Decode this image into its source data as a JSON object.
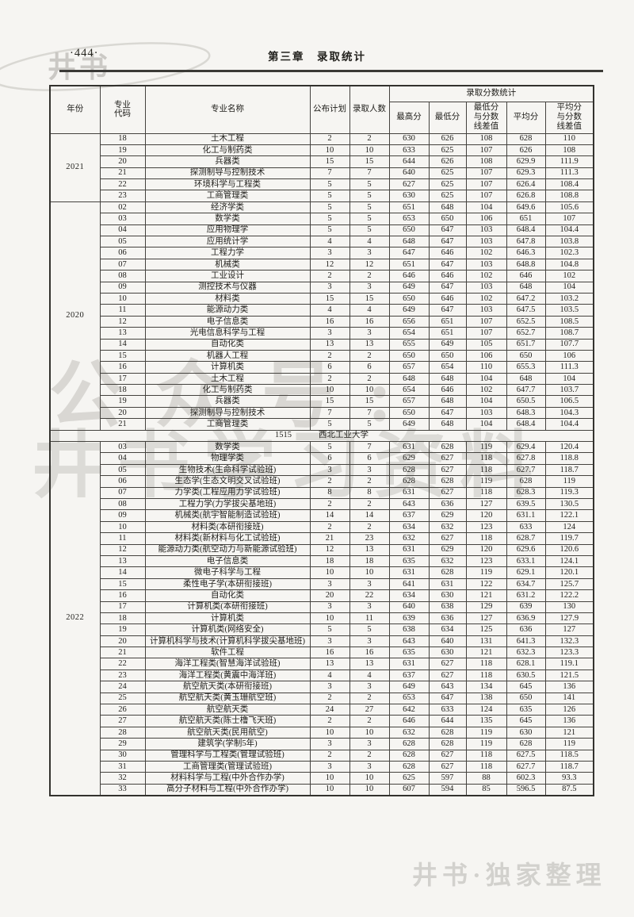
{
  "page": {
    "number": "·444·",
    "chapter_title": "第三章　录取统计"
  },
  "watermarks": {
    "top_left": "井书",
    "center_line1": "公众号:",
    "center_line2": "井书学习资料",
    "bottom_right": "井书·独家整理"
  },
  "table": {
    "headers": {
      "year": "年份",
      "code": "专业\n代码",
      "major": "专业名称",
      "plan": "公布计划",
      "admitted": "录取人数",
      "stats_group": "录取分数统计",
      "max": "最高分",
      "min": "最低分",
      "min_diff": "最低分\n与分数\n线差值",
      "avg": "平均分",
      "avg_diff": "平均分\n与分数\n线差值"
    },
    "sections": [
      {
        "type": "year",
        "year": "2021",
        "rows": [
          [
            "18",
            "土木工程",
            "2",
            "2",
            "630",
            "626",
            "108",
            "628",
            "110"
          ],
          [
            "19",
            "化工与制药类",
            "10",
            "10",
            "633",
            "625",
            "107",
            "626",
            "108"
          ],
          [
            "20",
            "兵器类",
            "15",
            "15",
            "644",
            "626",
            "108",
            "629.9",
            "111.9"
          ],
          [
            "21",
            "探测制导与控制技术",
            "7",
            "7",
            "640",
            "625",
            "107",
            "629.3",
            "111.3"
          ],
          [
            "22",
            "环境科学与工程类",
            "5",
            "5",
            "627",
            "625",
            "107",
            "626.4",
            "108.4"
          ],
          [
            "23",
            "工商管理类",
            "5",
            "5",
            "630",
            "625",
            "107",
            "626.8",
            "108.8"
          ]
        ]
      },
      {
        "type": "year",
        "year": "2020",
        "rows": [
          [
            "02",
            "经济学类",
            "5",
            "5",
            "651",
            "648",
            "104",
            "649.6",
            "105.6"
          ],
          [
            "03",
            "数学类",
            "5",
            "5",
            "653",
            "650",
            "106",
            "651",
            "107"
          ],
          [
            "04",
            "应用物理学",
            "5",
            "5",
            "650",
            "647",
            "103",
            "648.4",
            "104.4"
          ],
          [
            "05",
            "应用统计学",
            "4",
            "4",
            "648",
            "647",
            "103",
            "647.8",
            "103.8"
          ],
          [
            "06",
            "工程力学",
            "3",
            "3",
            "647",
            "646",
            "102",
            "646.3",
            "102.3"
          ],
          [
            "07",
            "机械类",
            "12",
            "12",
            "651",
            "647",
            "103",
            "648.8",
            "104.8"
          ],
          [
            "08",
            "工业设计",
            "2",
            "2",
            "646",
            "646",
            "102",
            "646",
            "102"
          ],
          [
            "09",
            "测控技术与仪器",
            "3",
            "3",
            "649",
            "647",
            "103",
            "648",
            "104"
          ],
          [
            "10",
            "材料类",
            "15",
            "15",
            "650",
            "646",
            "102",
            "647.2",
            "103.2"
          ],
          [
            "11",
            "能源动力类",
            "4",
            "4",
            "649",
            "647",
            "103",
            "647.5",
            "103.5"
          ],
          [
            "12",
            "电子信息类",
            "16",
            "16",
            "656",
            "651",
            "107",
            "652.5",
            "108.5"
          ],
          [
            "13",
            "光电信息科学与工程",
            "3",
            "3",
            "654",
            "651",
            "107",
            "652.7",
            "108.7"
          ],
          [
            "14",
            "自动化类",
            "13",
            "13",
            "655",
            "649",
            "105",
            "651.7",
            "107.7"
          ],
          [
            "15",
            "机器人工程",
            "2",
            "2",
            "650",
            "650",
            "106",
            "650",
            "106"
          ],
          [
            "16",
            "计算机类",
            "6",
            "6",
            "657",
            "654",
            "110",
            "655.3",
            "111.3"
          ],
          [
            "17",
            "土木工程",
            "2",
            "2",
            "648",
            "648",
            "104",
            "648",
            "104"
          ],
          [
            "18",
            "化工与制药类",
            "10",
            "10",
            "654",
            "646",
            "102",
            "647.7",
            "103.7"
          ],
          [
            "19",
            "兵器类",
            "15",
            "15",
            "657",
            "648",
            "104",
            "650.5",
            "106.5"
          ],
          [
            "20",
            "探测制导与控制技术",
            "7",
            "7",
            "650",
            "647",
            "103",
            "648.3",
            "104.3"
          ],
          [
            "21",
            "工商管理类",
            "5",
            "5",
            "649",
            "648",
            "104",
            "648.4",
            "104.4"
          ]
        ]
      },
      {
        "type": "divider",
        "code": "1515",
        "name": "西北工业大学"
      },
      {
        "type": "year",
        "year": "2022",
        "rows": [
          [
            "03",
            "数学类",
            "5",
            "7",
            "631",
            "628",
            "119",
            "629.4",
            "120.4"
          ],
          [
            "04",
            "物理学类",
            "6",
            "6",
            "629",
            "627",
            "118",
            "627.8",
            "118.8"
          ],
          [
            "05",
            "生物技术(生命科学试验班)",
            "3",
            "3",
            "628",
            "627",
            "118",
            "627.7",
            "118.7"
          ],
          [
            "06",
            "生态学(生态文明交叉试验班)",
            "2",
            "2",
            "628",
            "628",
            "119",
            "628",
            "119"
          ],
          [
            "07",
            "力学类(工程应用力学试验班)",
            "8",
            "8",
            "631",
            "627",
            "118",
            "628.3",
            "119.3"
          ],
          [
            "08",
            "工程力学(力学拔尖基地班)",
            "2",
            "2",
            "643",
            "636",
            "127",
            "639.5",
            "130.5"
          ],
          [
            "09",
            "机械类(航宇智能制造试验班)",
            "14",
            "14",
            "637",
            "629",
            "120",
            "631.1",
            "122.1"
          ],
          [
            "10",
            "材料类(本研衔接班)",
            "2",
            "2",
            "634",
            "632",
            "123",
            "633",
            "124"
          ],
          [
            "11",
            "材料类(新材料与化工试验班)",
            "21",
            "23",
            "632",
            "627",
            "118",
            "628.7",
            "119.7"
          ],
          [
            "12",
            "能源动力类(航空动力与新能源试验班)",
            "12",
            "13",
            "631",
            "629",
            "120",
            "629.6",
            "120.6"
          ],
          [
            "13",
            "电子信息类",
            "18",
            "18",
            "635",
            "632",
            "123",
            "633.1",
            "124.1"
          ],
          [
            "14",
            "微电子科学与工程",
            "10",
            "10",
            "631",
            "628",
            "119",
            "629.1",
            "120.1"
          ],
          [
            "15",
            "柔性电子学(本研衔接班)",
            "3",
            "3",
            "641",
            "631",
            "122",
            "634.7",
            "125.7"
          ],
          [
            "16",
            "自动化类",
            "20",
            "22",
            "634",
            "630",
            "121",
            "631.2",
            "122.2"
          ],
          [
            "17",
            "计算机类(本研衔接班)",
            "3",
            "3",
            "640",
            "638",
            "129",
            "639",
            "130"
          ],
          [
            "18",
            "计算机类",
            "10",
            "11",
            "639",
            "636",
            "127",
            "636.9",
            "127.9"
          ],
          [
            "19",
            "计算机类(网络安全)",
            "5",
            "5",
            "638",
            "634",
            "125",
            "636",
            "127"
          ],
          [
            "20",
            "计算机科学与技术(计算机科学拔尖基地班)",
            "3",
            "3",
            "643",
            "640",
            "131",
            "641.3",
            "132.3"
          ],
          [
            "21",
            "软件工程",
            "16",
            "16",
            "635",
            "630",
            "121",
            "632.3",
            "123.3"
          ],
          [
            "22",
            "海洋工程类(智慧海洋试验班)",
            "13",
            "13",
            "631",
            "627",
            "118",
            "628.1",
            "119.1"
          ],
          [
            "23",
            "海洋工程类(黄震中海洋班)",
            "4",
            "4",
            "637",
            "627",
            "118",
            "630.5",
            "121.5"
          ],
          [
            "24",
            "航空航天类(本研衔接班)",
            "3",
            "3",
            "649",
            "643",
            "134",
            "645",
            "136"
          ],
          [
            "25",
            "航空航天类(黄玉珊航空班)",
            "2",
            "2",
            "653",
            "647",
            "138",
            "650",
            "141"
          ],
          [
            "26",
            "航空航天类",
            "24",
            "27",
            "642",
            "633",
            "124",
            "635",
            "126"
          ],
          [
            "27",
            "航空航天类(陈士橹飞天班)",
            "2",
            "2",
            "646",
            "644",
            "135",
            "645",
            "136"
          ],
          [
            "28",
            "航空航天类(民用航空)",
            "10",
            "10",
            "632",
            "628",
            "119",
            "630",
            "121"
          ],
          [
            "29",
            "建筑学(学制5年)",
            "3",
            "3",
            "628",
            "628",
            "119",
            "628",
            "119"
          ],
          [
            "30",
            "管理科学与工程类(管理试验班)",
            "2",
            "2",
            "628",
            "627",
            "118",
            "627.5",
            "118.5"
          ],
          [
            "31",
            "工商管理类(管理试验班)",
            "3",
            "3",
            "628",
            "627",
            "118",
            "627.7",
            "118.7"
          ],
          [
            "32",
            "材料科学与工程(中外合作办学)",
            "10",
            "10",
            "625",
            "597",
            "88",
            "602.3",
            "93.3"
          ],
          [
            "33",
            "高分子材料与工程(中外合作办学)",
            "10",
            "10",
            "607",
            "594",
            "85",
            "596.5",
            "87.5"
          ]
        ]
      }
    ]
  }
}
